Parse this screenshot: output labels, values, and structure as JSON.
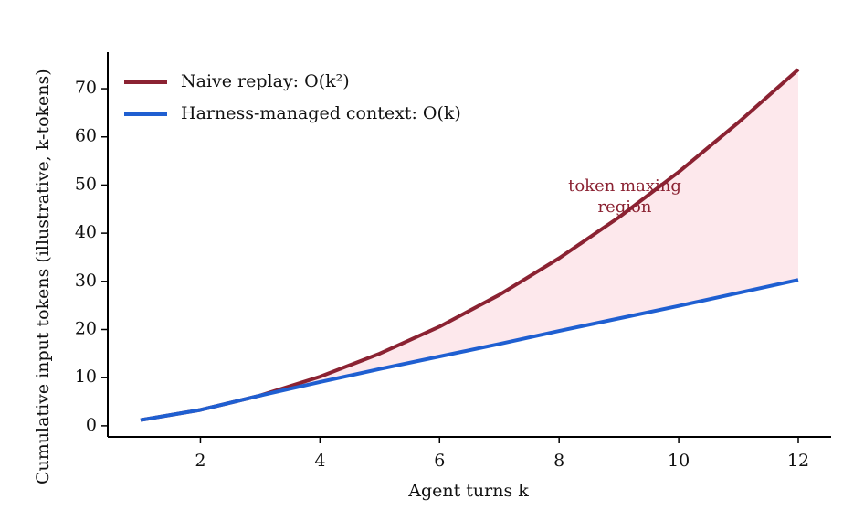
{
  "chart_data": {
    "type": "line",
    "x_label": "Agent turns k",
    "y_label": "Cumulative input tokens (illustrative, k-tokens)",
    "x": [
      1,
      2,
      3,
      4,
      5,
      6,
      7,
      8,
      9,
      10,
      11,
      12
    ],
    "series": [
      {
        "name": "Naive replay: O(k²)",
        "color": "#8b2232",
        "values": [
          1.2,
          3.3,
          6.3,
          10.2,
          15.0,
          20.6,
          27.2,
          34.8,
          43.3,
          52.7,
          63.0,
          74.0
        ]
      },
      {
        "name": "Harness-managed context: O(k)",
        "color": "#1f5fd1",
        "values": [
          1.2,
          3.3,
          6.3,
          9.1,
          11.8,
          14.4,
          17.0,
          19.7,
          22.3,
          24.9,
          27.6,
          30.3
        ]
      }
    ],
    "fill_color": "#fde8ec",
    "annotation": [
      "token maxing",
      "region"
    ],
    "annotation_color": "#8b2232",
    "xlim": [
      0.45,
      12.55
    ],
    "xticks": [
      2,
      4,
      6,
      8,
      10,
      12
    ],
    "ylim": [
      -2.3,
      77.6
    ],
    "yticks": [
      0,
      10,
      20,
      30,
      40,
      50,
      60,
      70
    ],
    "grid": false,
    "legend": "upper left"
  }
}
